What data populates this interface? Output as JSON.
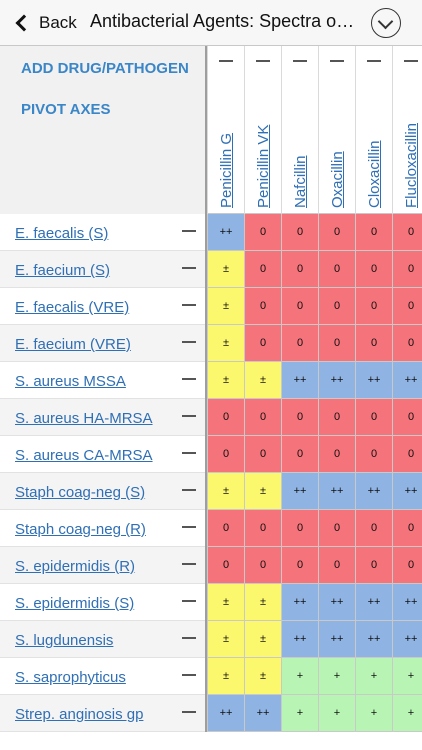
{
  "nav": {
    "back_label": "Back",
    "title": "Antibacterial Agents: Spectra o…"
  },
  "actions": {
    "add": "ADD DRUG/PATHOGEN",
    "pivot": "PIVOT AXES"
  },
  "drugs": [
    "Penicillin G",
    "Penicillin VK",
    "Nafcillin",
    "Oxacillin",
    "Cloxacillin",
    "Flucloxacillin"
  ],
  "pathogens": [
    {
      "name": "E. faecalis (S)",
      "values": [
        "++",
        "0",
        "0",
        "0",
        "0",
        "0"
      ]
    },
    {
      "name": "E. faecium (S)",
      "values": [
        "±",
        "0",
        "0",
        "0",
        "0",
        "0"
      ]
    },
    {
      "name": "E. faecalis (VRE)",
      "values": [
        "±",
        "0",
        "0",
        "0",
        "0",
        "0"
      ]
    },
    {
      "name": "E. faecium (VRE)",
      "values": [
        "±",
        "0",
        "0",
        "0",
        "0",
        "0"
      ]
    },
    {
      "name": "S. aureus MSSA",
      "values": [
        "±",
        "±",
        "++",
        "++",
        "++",
        "++"
      ]
    },
    {
      "name": "S. aureus HA-MRSA",
      "values": [
        "0",
        "0",
        "0",
        "0",
        "0",
        "0"
      ]
    },
    {
      "name": "S. aureus CA-MRSA",
      "values": [
        "0",
        "0",
        "0",
        "0",
        "0",
        "0"
      ]
    },
    {
      "name": "Staph coag-neg (S)",
      "values": [
        "±",
        "±",
        "++",
        "++",
        "++",
        "++"
      ]
    },
    {
      "name": "Staph coag-neg (R)",
      "values": [
        "0",
        "0",
        "0",
        "0",
        "0",
        "0"
      ]
    },
    {
      "name": "S. epidermidis (R)",
      "values": [
        "0",
        "0",
        "0",
        "0",
        "0",
        "0"
      ]
    },
    {
      "name": "S. epidermidis (S)",
      "values": [
        "±",
        "±",
        "++",
        "++",
        "++",
        "++"
      ]
    },
    {
      "name": "S. lugdunensis",
      "values": [
        "±",
        "±",
        "++",
        "++",
        "++",
        "++"
      ]
    },
    {
      "name": "S. saprophyticus",
      "values": [
        "±",
        "±",
        "+",
        "+",
        "+",
        "+"
      ]
    },
    {
      "name": "Strep. anginosis gp",
      "values": [
        "++",
        "++",
        "+",
        "+",
        "+",
        "+"
      ]
    }
  ],
  "value_colors": {
    "++": "#8fb3e3",
    "+": "#b8f5b4",
    "±": "#fbf86d",
    "0": "#f5737a"
  }
}
